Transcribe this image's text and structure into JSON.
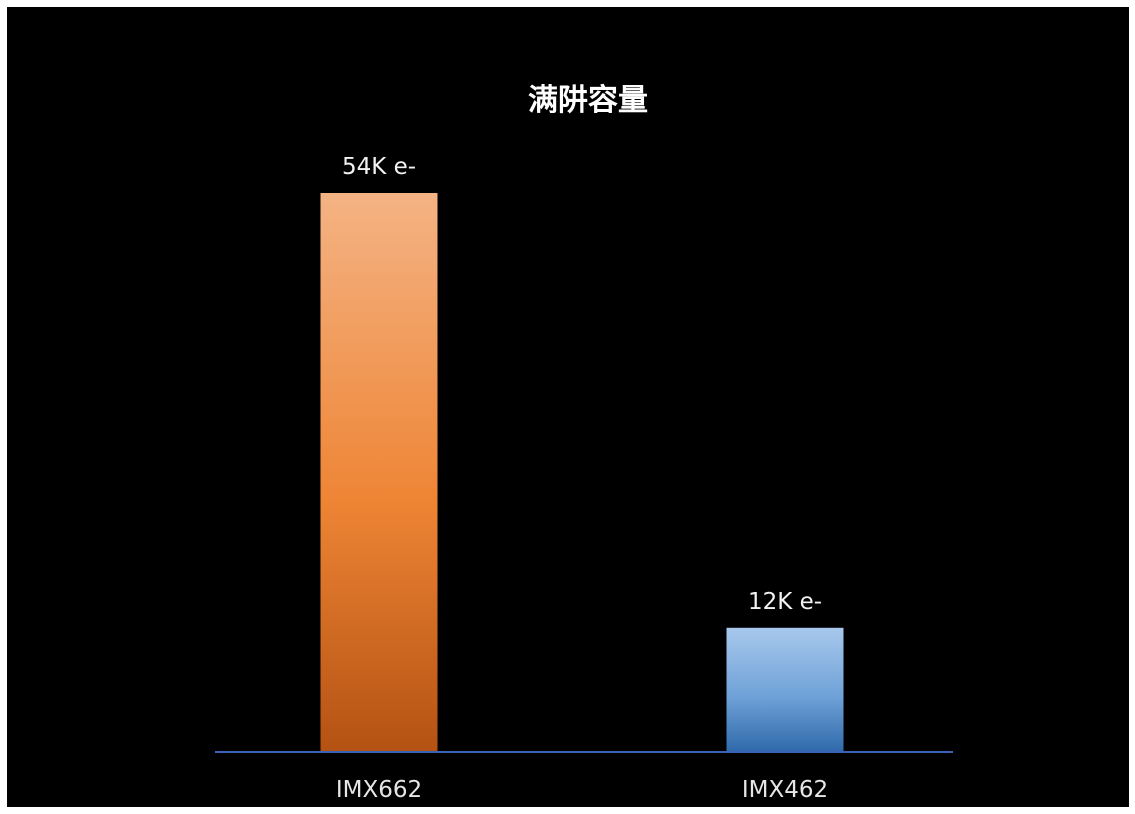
{
  "chart_data": {
    "type": "bar",
    "title": "满阱容量",
    "xlabel": "",
    "ylabel": "",
    "categories": [
      "IMX662",
      "IMX462"
    ],
    "values": [
      54,
      12
    ],
    "data_labels": [
      "54K e-",
      "12K e-"
    ],
    "unit": "K e-",
    "ylim": [
      0,
      54
    ],
    "grid": false,
    "legend": "none",
    "background_color": "#000000",
    "axis_color": "#3a63b8",
    "bar_colors": [
      {
        "top": "#f4b384",
        "mid": "#ee8535",
        "bottom": "#b45213"
      },
      {
        "top": "#a8c8ec",
        "mid": "#6fa2d8",
        "bottom": "#2f6aaa"
      }
    ]
  }
}
